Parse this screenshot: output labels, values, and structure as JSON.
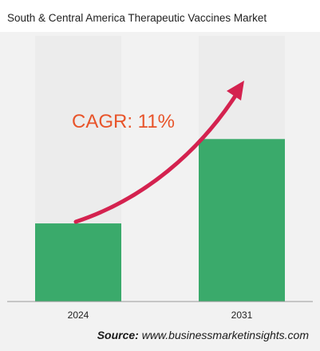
{
  "chart_data": {
    "type": "bar",
    "title": "South & Central America Therapeutic Vaccines Market",
    "categories": [
      "2024",
      "2031"
    ],
    "values": [
      1.0,
      2.08
    ],
    "ylim": [
      0,
      3.4
    ],
    "annotation": "CAGR: 11%",
    "source_label": "Source:",
    "source_text": "www.businessmarketinsights.com",
    "colors": {
      "bar": "#3aaa6b",
      "track": "#ececec",
      "arrow": "#d4224f",
      "annotation": "#e8542a",
      "axis": "#999999"
    }
  }
}
